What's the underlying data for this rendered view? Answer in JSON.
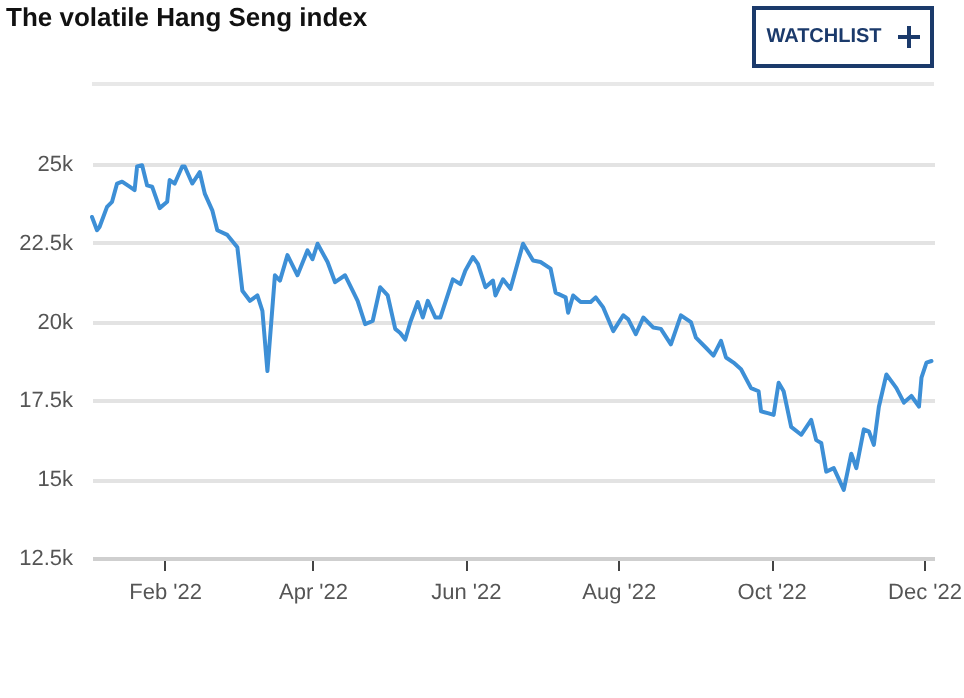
{
  "chart_data": {
    "type": "line",
    "title": "The volatile Hang Seng index",
    "annotations": [
      "WATCHLIST"
    ],
    "x": [
      "2022-01-03",
      "2022-01-05",
      "2022-01-06",
      "2022-01-09",
      "2022-01-11",
      "2022-01-13",
      "2022-01-15",
      "2022-01-18",
      "2022-01-20",
      "2022-01-21",
      "2022-01-23",
      "2022-01-25",
      "2022-01-27",
      "2022-01-30",
      "2022-02-02",
      "2022-02-03",
      "2022-02-05",
      "2022-02-08",
      "2022-02-09",
      "2022-02-12",
      "2022-02-15",
      "2022-02-17",
      "2022-02-20",
      "2022-02-22",
      "2022-02-26",
      "2022-03-02",
      "2022-03-04",
      "2022-03-07",
      "2022-03-10",
      "2022-03-12",
      "2022-03-14",
      "2022-03-17",
      "2022-03-19",
      "2022-03-22",
      "2022-03-26",
      "2022-03-30",
      "2022-04-01",
      "2022-04-03",
      "2022-04-07",
      "2022-04-10",
      "2022-04-14",
      "2022-04-17",
      "2022-04-19",
      "2022-04-22",
      "2022-04-25",
      "2022-04-28",
      "2022-05-01",
      "2022-05-04",
      "2022-05-06",
      "2022-05-08",
      "2022-05-10",
      "2022-05-13",
      "2022-05-15",
      "2022-05-17",
      "2022-05-20",
      "2022-05-22",
      "2022-05-27",
      "2022-05-30",
      "2022-06-01",
      "2022-06-04",
      "2022-06-06",
      "2022-06-09",
      "2022-06-12",
      "2022-06-13",
      "2022-06-16",
      "2022-06-19",
      "2022-06-24",
      "2022-06-28",
      "2022-07-01",
      "2022-07-05",
      "2022-07-07",
      "2022-07-11",
      "2022-07-12",
      "2022-07-14",
      "2022-07-17",
      "2022-07-21",
      "2022-07-23",
      "2022-07-26",
      "2022-07-30",
      "2022-08-03",
      "2022-08-05",
      "2022-08-08",
      "2022-08-11",
      "2022-08-15",
      "2022-08-18",
      "2022-08-22",
      "2022-08-26",
      "2022-08-30",
      "2022-09-01",
      "2022-09-05",
      "2022-09-08",
      "2022-09-11",
      "2022-09-13",
      "2022-09-16",
      "2022-09-19",
      "2022-09-23",
      "2022-09-26",
      "2022-09-27",
      "2022-09-30",
      "2022-10-02",
      "2022-10-04",
      "2022-10-06",
      "2022-10-09",
      "2022-10-13",
      "2022-10-17",
      "2022-10-19",
      "2022-10-21",
      "2022-10-23",
      "2022-10-26",
      "2022-10-30",
      "2022-11-02",
      "2022-11-04",
      "2022-11-07",
      "2022-11-09",
      "2022-11-11",
      "2022-11-13",
      "2022-11-16",
      "2022-11-19",
      "2022-11-20",
      "2022-11-23",
      "2022-11-26",
      "2022-11-29",
      "2022-11-30",
      "2022-12-02",
      "2022-12-04"
    ],
    "series": [
      {
        "color": "#3d8fd6",
        "values": [
          23320,
          22900,
          23000,
          23640,
          23800,
          24380,
          24440,
          24280,
          24170,
          24920,
          24960,
          24320,
          24280,
          23600,
          23800,
          24490,
          24380,
          24920,
          24920,
          24380,
          24740,
          24060,
          23530,
          22900,
          22750,
          22360,
          20980,
          20660,
          20830,
          20340,
          18430,
          21470,
          21300,
          22110,
          21470,
          22260,
          21980,
          22470,
          21890,
          21250,
          21470,
          20980,
          20660,
          19920,
          20020,
          21090,
          20830,
          19770,
          19640,
          19430,
          19980,
          20620,
          20130,
          20660,
          20130,
          20130,
          21340,
          21190,
          21620,
          22050,
          21830,
          21090,
          21300,
          20830,
          21340,
          21040,
          22470,
          21940,
          21890,
          21680,
          20920,
          20770,
          20280,
          20830,
          20620,
          20620,
          20770,
          20450,
          19700,
          20200,
          20070,
          19600,
          20130,
          19810,
          19770,
          19280,
          20200,
          19980,
          19490,
          19170,
          18920,
          19390,
          18860,
          18700,
          18490,
          17890,
          17790,
          17150,
          17090,
          17040,
          18060,
          17790,
          16660,
          16410,
          16880,
          16240,
          16150,
          15240,
          15350,
          14660,
          15810,
          15350,
          16580,
          16520,
          16090,
          17300,
          18320,
          18000,
          17890,
          17430,
          17640,
          17300,
          18220,
          18700,
          18750
        ]
      }
    ],
    "xlim": [
      "2022-01-03",
      "2022-12-05"
    ],
    "xticks": [
      {
        "value": "2022-02-01",
        "label": "Feb '22"
      },
      {
        "value": "2022-04-01",
        "label": "Apr '22"
      },
      {
        "value": "2022-06-01",
        "label": "Jun '22"
      },
      {
        "value": "2022-08-01",
        "label": "Aug '22"
      },
      {
        "value": "2022-10-01",
        "label": "Oct '22"
      },
      {
        "value": "2022-12-01",
        "label": "Dec '22"
      }
    ],
    "ylim": [
      12500,
      25000
    ],
    "yticks": [
      {
        "value": 12500,
        "label": "12.5k"
      },
      {
        "value": 15000,
        "label": "15k"
      },
      {
        "value": 17500,
        "label": "17.5k"
      },
      {
        "value": 20000,
        "label": "20k"
      },
      {
        "value": 22500,
        "label": "22.5k"
      },
      {
        "value": 25000,
        "label": "25k"
      }
    ],
    "grid": "y",
    "marker": "none",
    "line_style": "solid"
  }
}
